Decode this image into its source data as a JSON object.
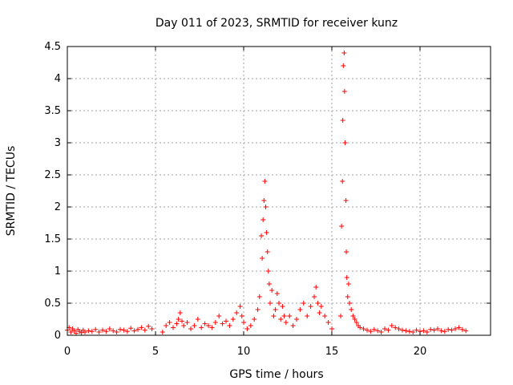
{
  "chart_data": {
    "type": "scatter",
    "title": "Day 011 of 2023, SRMTID for receiver kunz",
    "xlabel": "GPS time / hours",
    "ylabel": "SRMTID / TECUs",
    "xlim": [
      0,
      24
    ],
    "ylim": [
      0,
      4.5
    ],
    "xticks": [
      0,
      5,
      10,
      15,
      20
    ],
    "xtick_labels": [
      "0",
      "5",
      "10",
      "15",
      "20"
    ],
    "yticks": [
      0,
      0.5,
      1,
      1.5,
      2,
      2.5,
      3,
      3.5,
      4,
      4.5
    ],
    "ytick_labels": [
      "0",
      "0.5",
      "1",
      "1.5",
      "2",
      "2.5",
      "3",
      "3.5",
      "4",
      "4.5"
    ],
    "grid": true,
    "legend": "none",
    "marker": "plus",
    "color": "#ff0000",
    "series": [
      {
        "name": "SRMTID",
        "x": [
          0.0,
          0.1,
          0.2,
          0.3,
          0.4,
          0.5,
          0.6,
          0.7,
          0.8,
          0.9,
          1.0,
          1.2,
          1.4,
          1.6,
          1.8,
          2.0,
          2.2,
          2.4,
          2.6,
          2.8,
          3.0,
          3.2,
          3.4,
          3.6,
          3.8,
          4.0,
          4.2,
          4.4,
          4.6,
          4.8,
          5.4,
          5.6,
          5.8,
          6.0,
          6.2,
          6.3,
          6.4,
          6.5,
          6.6,
          6.8,
          7.0,
          7.2,
          7.4,
          7.6,
          7.8,
          8.0,
          8.2,
          8.4,
          8.6,
          8.8,
          9.0,
          9.2,
          9.4,
          9.6,
          9.8,
          9.9,
          10.0,
          10.2,
          10.4,
          10.6,
          10.8,
          10.9,
          11.0,
          11.05,
          11.1,
          11.15,
          11.2,
          11.25,
          11.3,
          11.35,
          11.4,
          11.45,
          11.5,
          11.6,
          11.7,
          11.8,
          11.9,
          12.0,
          12.1,
          12.2,
          12.3,
          12.4,
          12.6,
          12.8,
          13.0,
          13.2,
          13.4,
          13.6,
          13.8,
          14.0,
          14.1,
          14.2,
          14.3,
          14.4,
          14.6,
          14.8,
          15.0,
          15.5,
          15.55,
          15.6,
          15.62,
          15.65,
          15.7,
          15.72,
          15.75,
          15.8,
          15.82,
          15.85,
          15.9,
          15.95,
          16.0,
          16.1,
          16.2,
          16.3,
          16.4,
          16.5,
          16.6,
          16.8,
          17.0,
          17.2,
          17.4,
          17.6,
          17.8,
          18.0,
          18.2,
          18.4,
          18.6,
          18.8,
          19.0,
          19.2,
          19.4,
          19.6,
          19.8,
          20.0,
          20.2,
          20.4,
          20.6,
          20.8,
          21.0,
          21.2,
          21.4,
          21.6,
          21.8,
          22.0,
          22.2,
          22.4,
          22.6
        ],
        "y": [
          0.08,
          0.12,
          0.05,
          0.1,
          0.07,
          0.03,
          0.09,
          0.06,
          0.04,
          0.08,
          0.05,
          0.07,
          0.06,
          0.09,
          0.05,
          0.08,
          0.06,
          0.1,
          0.07,
          0.05,
          0.09,
          0.08,
          0.06,
          0.11,
          0.07,
          0.09,
          0.12,
          0.08,
          0.14,
          0.1,
          0.05,
          0.15,
          0.2,
          0.12,
          0.18,
          0.25,
          0.35,
          0.22,
          0.15,
          0.2,
          0.1,
          0.15,
          0.25,
          0.12,
          0.18,
          0.15,
          0.12,
          0.2,
          0.3,
          0.18,
          0.22,
          0.15,
          0.25,
          0.35,
          0.45,
          0.3,
          0.2,
          0.1,
          0.15,
          0.25,
          0.4,
          0.6,
          1.55,
          1.2,
          1.8,
          2.1,
          2.4,
          2.0,
          1.6,
          1.3,
          1.0,
          0.8,
          0.5,
          0.7,
          0.3,
          0.4,
          0.65,
          0.5,
          0.25,
          0.45,
          0.3,
          0.2,
          0.3,
          0.15,
          0.25,
          0.4,
          0.5,
          0.3,
          0.45,
          0.6,
          0.75,
          0.5,
          0.35,
          0.45,
          0.3,
          0.2,
          0.1,
          0.3,
          1.7,
          2.4,
          3.35,
          4.2,
          4.4,
          3.8,
          3.0,
          2.1,
          1.3,
          0.9,
          0.6,
          0.8,
          0.5,
          0.4,
          0.3,
          0.25,
          0.2,
          0.15,
          0.12,
          0.1,
          0.08,
          0.06,
          0.09,
          0.07,
          0.05,
          0.1,
          0.08,
          0.15,
          0.12,
          0.1,
          0.08,
          0.07,
          0.06,
          0.05,
          0.08,
          0.06,
          0.07,
          0.05,
          0.09,
          0.08,
          0.1,
          0.07,
          0.06,
          0.09,
          0.08,
          0.1,
          0.12,
          0.09,
          0.07
        ]
      }
    ]
  }
}
